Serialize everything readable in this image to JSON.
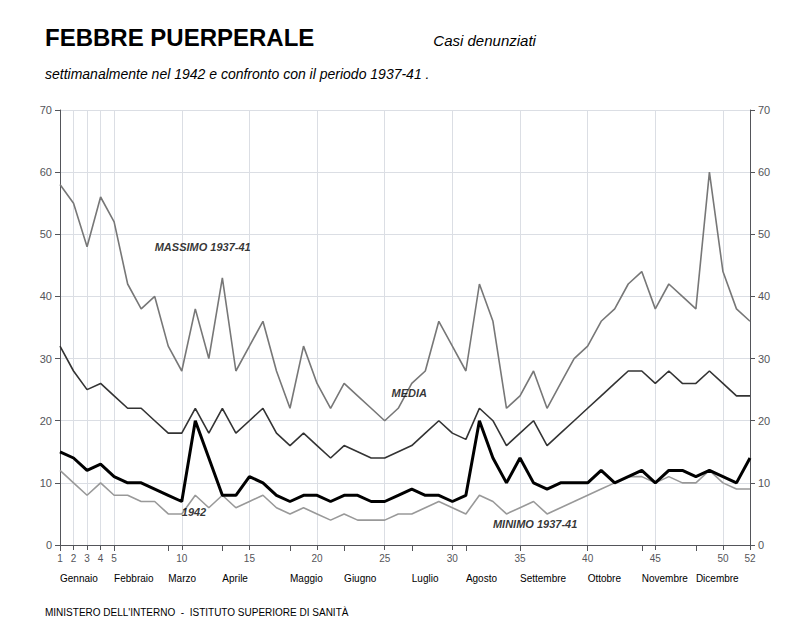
{
  "chart_data": {
    "type": "line",
    "title": "FEBBRE PUERPERALE",
    "title_italic": "  Casi denunziati",
    "subtitle": "settimanalmente nel 1942 e confronto con il periodo 1937-41 .",
    "footer": "MINISTERO DELL'INTERNO  -  ISTITUTO SUPERIORE DI SANITÀ",
    "x": [
      1,
      2,
      3,
      4,
      5,
      6,
      7,
      8,
      9,
      10,
      11,
      12,
      13,
      14,
      15,
      16,
      17,
      18,
      19,
      20,
      21,
      22,
      23,
      24,
      25,
      26,
      27,
      28,
      29,
      30,
      31,
      32,
      33,
      34,
      35,
      36,
      37,
      38,
      39,
      40,
      41,
      42,
      43,
      44,
      45,
      46,
      47,
      48,
      49,
      50,
      51,
      52
    ],
    "series": [
      {
        "name": "MASSIMO 1937-41",
        "color": "#777777",
        "values": [
          58,
          55,
          48,
          56,
          52,
          42,
          38,
          40,
          32,
          28,
          38,
          30,
          43,
          28,
          32,
          36,
          28,
          22,
          32,
          26,
          22,
          26,
          24,
          22,
          20,
          22,
          26,
          28,
          36,
          32,
          28,
          42,
          36,
          22,
          24,
          28,
          22,
          26,
          30,
          32,
          36,
          38,
          42,
          44,
          38,
          42,
          40,
          38,
          60,
          44,
          38,
          36
        ]
      },
      {
        "name": "MINIMO 1937-41",
        "color": "#999999",
        "values": [
          12,
          10,
          8,
          10,
          8,
          8,
          7,
          7,
          5,
          5,
          8,
          6,
          8,
          6,
          7,
          8,
          6,
          5,
          6,
          5,
          4,
          5,
          4,
          4,
          4,
          5,
          5,
          6,
          7,
          6,
          5,
          8,
          7,
          5,
          6,
          7,
          5,
          6,
          7,
          8,
          9,
          10,
          11,
          11,
          10,
          11,
          10,
          10,
          12,
          10,
          9,
          9
        ]
      },
      {
        "name": "MEDIA",
        "color": "#333333",
        "values": [
          32,
          28,
          25,
          26,
          24,
          22,
          22,
          20,
          18,
          18,
          22,
          18,
          22,
          18,
          20,
          22,
          18,
          16,
          18,
          16,
          14,
          16,
          15,
          14,
          14,
          15,
          16,
          18,
          20,
          18,
          17,
          22,
          20,
          16,
          18,
          20,
          16,
          18,
          20,
          22,
          24,
          26,
          28,
          28,
          26,
          28,
          26,
          26,
          28,
          26,
          24,
          24
        ]
      },
      {
        "name": "1942",
        "color": "#000000",
        "values": [
          15,
          14,
          12,
          13,
          11,
          10,
          10,
          9,
          8,
          7,
          20,
          14,
          8,
          8,
          11,
          10,
          8,
          7,
          8,
          8,
          7,
          8,
          8,
          7,
          7,
          8,
          9,
          8,
          8,
          7,
          8,
          20,
          14,
          10,
          14,
          10,
          9,
          10,
          10,
          10,
          12,
          10,
          11,
          12,
          10,
          12,
          12,
          11,
          12,
          11,
          10,
          14
        ]
      }
    ],
    "annotations": [
      {
        "text": "MASSIMO 1937-41",
        "x": 8,
        "y": 47
      },
      {
        "text": "MEDIA",
        "x": 25.5,
        "y": 23.5
      },
      {
        "text": "1942",
        "x": 10,
        "y": 4.5
      },
      {
        "text": "MINIMO 1937-41",
        "x": 33,
        "y": 2.5
      }
    ],
    "month_labels": [
      {
        "text": "Gennaio",
        "x": 1
      },
      {
        "text": "Febbraio",
        "x": 5
      },
      {
        "text": "Marzo",
        "x": 9
      },
      {
        "text": "Aprile",
        "x": 13
      },
      {
        "text": "Maggio",
        "x": 18
      },
      {
        "text": "Giugno",
        "x": 22
      },
      {
        "text": "Luglio",
        "x": 27
      },
      {
        "text": "Agosto",
        "x": 31
      },
      {
        "text": "Settembre",
        "x": 35
      },
      {
        "text": "Ottobre",
        "x": 40
      },
      {
        "text": "Novembre",
        "x": 44
      },
      {
        "text": "Dicembre",
        "x": 48
      }
    ],
    "xlim": [
      1,
      52
    ],
    "xticks": [
      1,
      2,
      3,
      4,
      5,
      10,
      15,
      20,
      25,
      30,
      35,
      40,
      45,
      50,
      52
    ],
    "ylim": [
      0,
      70
    ],
    "yticks": [
      0,
      10,
      20,
      30,
      40,
      50,
      60,
      70
    ],
    "y2lim": [
      0,
      70
    ],
    "y2ticks": [
      0,
      10,
      20,
      30,
      40,
      50,
      60,
      70
    ],
    "grid": true
  }
}
